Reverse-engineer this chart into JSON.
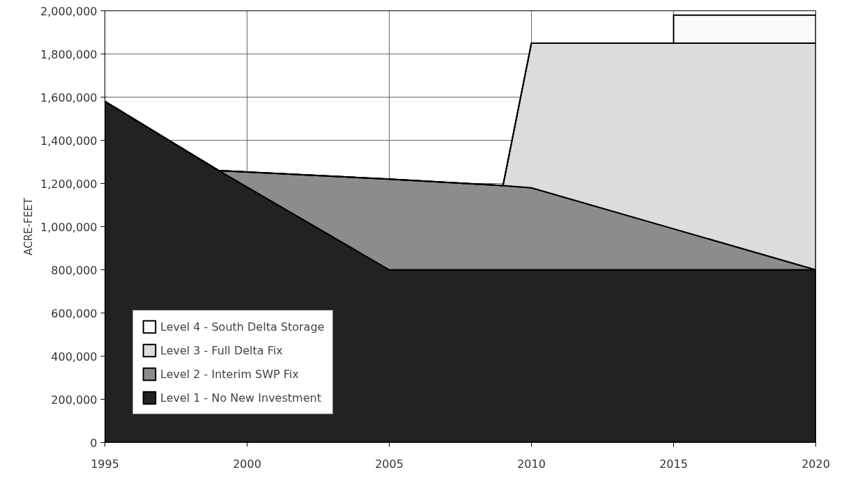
{
  "chart_data": {
    "type": "area",
    "stacked": true,
    "ylabel": "ACRE-FEET",
    "x": [
      1995,
      1999,
      2005,
      2009,
      2010,
      2015,
      2015,
      2020
    ],
    "series": [
      {
        "name": "Level 1 - No New Investment",
        "color": "#222222",
        "values": [
          1580000,
          1260000,
          800000,
          800000,
          800000,
          800000,
          800000,
          800000
        ]
      },
      {
        "name": "Level 2 - Interim SWP Fix",
        "color": "#8c8c8c",
        "values": [
          0,
          0,
          420000,
          390000,
          380000,
          190000,
          190000,
          0
        ]
      },
      {
        "name": "Level 3 - Full Delta Fix",
        "color": "#dcdcdc",
        "values": [
          0,
          0,
          0,
          0,
          670000,
          860000,
          860000,
          1050000
        ]
      },
      {
        "name": "Level 4 - South Delta Storage",
        "color": "#fafafa",
        "values": [
          0,
          0,
          0,
          0,
          0,
          0,
          130000,
          130000
        ]
      }
    ],
    "xlim": [
      1995,
      2020
    ],
    "xticks": [
      1995,
      2000,
      2005,
      2010,
      2015,
      2020
    ],
    "ylim": [
      0,
      2000000
    ],
    "yticks": [
      {
        "value": 0,
        "label": "0"
      },
      {
        "value": 200000,
        "label": "200,000"
      },
      {
        "value": 400000,
        "label": "400,000"
      },
      {
        "value": 600000,
        "label": "600,000"
      },
      {
        "value": 800000,
        "label": "800,000"
      },
      {
        "value": 1000000,
        "label": "1,000,000"
      },
      {
        "value": 1200000,
        "label": "1,200,000"
      },
      {
        "value": 1400000,
        "label": "1,400,000"
      },
      {
        "value": 1600000,
        "label": "1,600,000"
      },
      {
        "value": 1800000,
        "label": "1,800,000"
      },
      {
        "value": 2000000,
        "label": "2,000,000"
      }
    ],
    "grid": true,
    "legend": "bottom left"
  }
}
